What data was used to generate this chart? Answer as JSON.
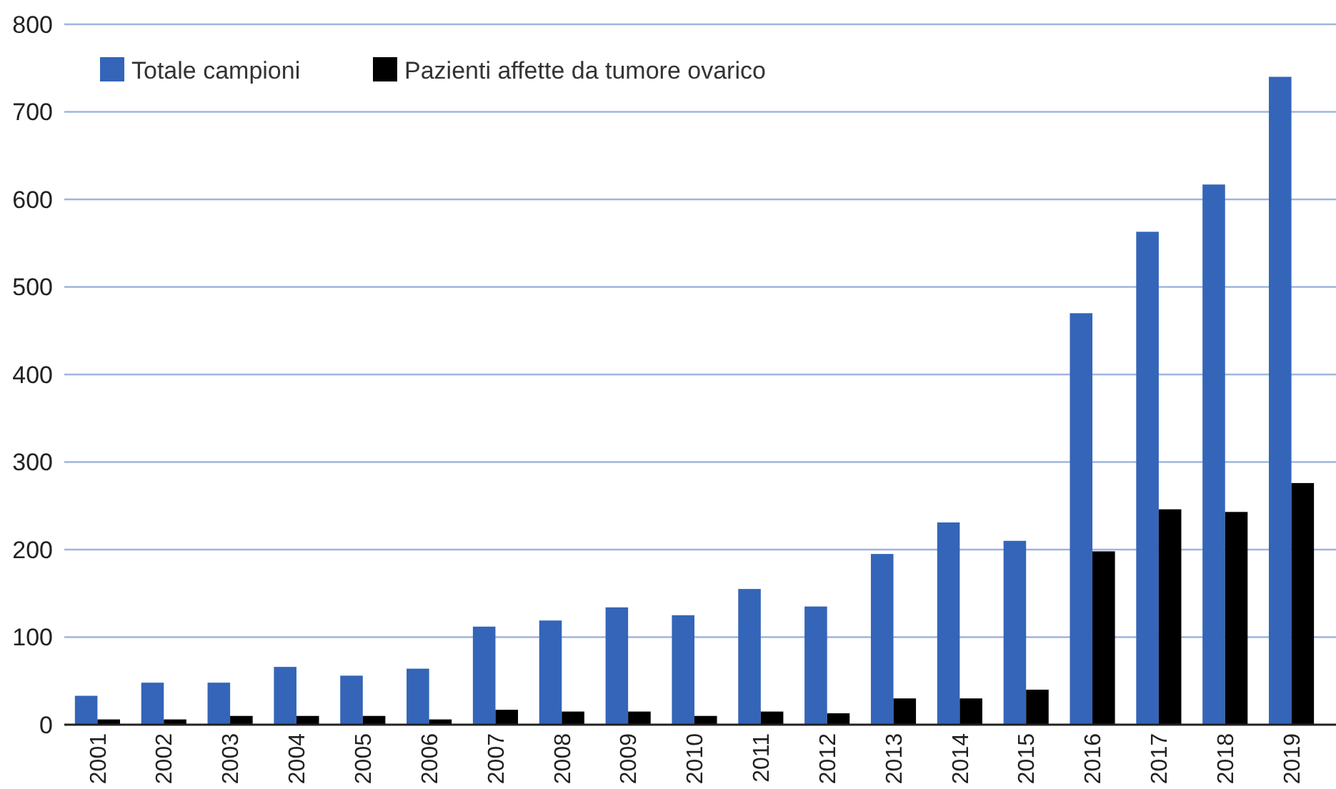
{
  "chart_data": {
    "type": "bar",
    "categories": [
      "2001",
      "2002",
      "2003",
      "2004",
      "2005",
      "2006",
      "2007",
      "2008",
      "2009",
      "2010",
      "2011",
      "2012",
      "2013",
      "2014",
      "2015",
      "2016",
      "2017",
      "2018",
      "2019"
    ],
    "series": [
      {
        "name": "Totale campioni",
        "color": "#3465b8",
        "values": [
          33,
          48,
          48,
          66,
          56,
          64,
          112,
          119,
          134,
          125,
          155,
          135,
          195,
          231,
          210,
          470,
          563,
          617,
          740
        ]
      },
      {
        "name": "Pazienti affette da tumore ovarico",
        "color": "#000000",
        "values": [
          6,
          6,
          10,
          10,
          10,
          6,
          17,
          15,
          15,
          10,
          15,
          13,
          30,
          30,
          40,
          198,
          246,
          243,
          276
        ]
      }
    ],
    "ylim": [
      0,
      800
    ],
    "yticks": [
      0,
      100,
      200,
      300,
      400,
      500,
      600,
      700,
      800
    ],
    "grid": "y",
    "legend": "top left"
  }
}
